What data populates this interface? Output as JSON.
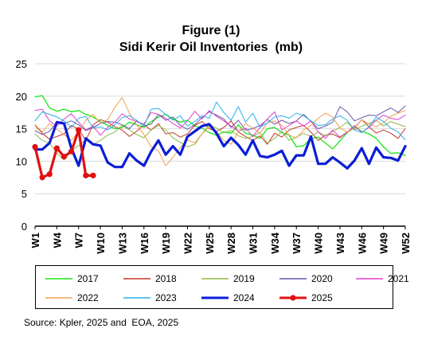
{
  "chart_data": {
    "type": "line",
    "title": "Figure (1)",
    "subtitle": "Sidi Kerir Oil Inventories  (mb)",
    "ylim": [
      0,
      25
    ],
    "yticks": [
      "0",
      "5",
      "10",
      "15",
      "20",
      "25"
    ],
    "xticks": [
      "W1",
      "W4",
      "W7",
      "W10",
      "W13",
      "W16",
      "W19",
      "W22",
      "W25",
      "W28",
      "W31",
      "W34",
      "W37",
      "W40",
      "W43",
      "W46",
      "W49",
      "W52"
    ],
    "grid": "horizontal",
    "legend_position": "bottom",
    "series": [
      {
        "name": "2017",
        "color": "#19e619",
        "width": 1.3,
        "values": [
          19.9,
          20.1,
          18.2,
          17.7,
          18.0,
          17.6,
          17.8,
          17.2,
          16.8,
          16.1,
          15.5,
          15.0,
          15.2,
          16.0,
          15.6,
          15.2,
          16.1,
          16.8,
          17.2,
          16.5,
          16.0,
          16.3,
          15.4,
          15.1,
          14.4,
          14.0,
          14.5,
          14.3,
          15.6,
          14.3,
          14.0,
          13.5,
          15.0,
          15.2,
          14.4,
          14.0,
          12.2,
          12.4,
          13.5,
          13.7,
          12.8,
          11.9,
          13.1,
          14.4,
          15.3,
          14.6,
          14.2,
          13.5,
          12.2,
          11.2,
          11.3,
          10.9
        ]
      },
      {
        "name": "2018",
        "color": "#c0392b",
        "width": 1.0,
        "values": [
          15.5,
          14.3,
          13.4,
          13.8,
          14.2,
          15.5,
          14.9,
          13.2,
          15.6,
          16.4,
          16.0,
          15.3,
          14.8,
          13.8,
          14.6,
          15.6,
          14.8,
          15.8,
          14.2,
          14.4,
          13.7,
          14.2,
          15.5,
          16.1,
          15.0,
          14.6,
          15.2,
          16.2,
          14.5,
          13.8,
          13.2,
          13.9,
          12.6,
          14.3,
          13.7,
          14.8,
          15.2,
          15.5,
          14.5,
          13.2,
          14.0,
          14.2,
          13.6,
          14.5,
          15.1,
          16.4,
          15.3,
          14.3,
          14.8,
          14.3,
          13.5,
          15.0
        ]
      },
      {
        "name": "2019",
        "color": "#8fb848",
        "width": 1.0,
        "values": [
          14.2,
          13.2,
          12.8,
          11.2,
          10.2,
          11.6,
          12.4,
          13.3,
          12.6,
          13.2,
          14.0,
          14.5,
          15.5,
          14.8,
          14.1,
          13.6,
          14.8,
          15.5,
          14.8,
          13.6,
          12.9,
          12.2,
          12.6,
          14.2,
          15.6,
          15.1,
          14.4,
          14.7,
          13.9,
          13.5,
          13.8,
          14.4,
          12.8,
          13.5,
          14.6,
          13.2,
          13.7,
          14.3,
          13.8,
          14.5,
          13.9,
          14.6,
          15.2,
          16.0,
          14.8,
          15.4,
          15.8,
          16.3,
          15.4,
          16.1,
          15.7,
          15.3
        ]
      },
      {
        "name": "2020",
        "color": "#6a55a8",
        "width": 1.0,
        "values": [
          14.7,
          14.1,
          14.6,
          16.0,
          15.8,
          16.2,
          15.6,
          14.7,
          15.2,
          15.8,
          16.1,
          16.0,
          15.6,
          15.0,
          16.2,
          15.4,
          15.7,
          17.2,
          16.3,
          16.8,
          15.5,
          14.9,
          15.6,
          16.7,
          17.6,
          17.1,
          16.5,
          15.2,
          16.3,
          14.8,
          15.0,
          15.5,
          16.4,
          15.7,
          16.3,
          15.8,
          16.2,
          17.2,
          16.1,
          15.0,
          15.4,
          16.0,
          18.4,
          17.6,
          16.2,
          16.7,
          17.1,
          17.0,
          17.6,
          18.2,
          17.5,
          18.5
        ]
      },
      {
        "name": "2021",
        "color": "#e040c8",
        "width": 1.0,
        "values": [
          17.8,
          18.0,
          16.2,
          15.4,
          16.5,
          17.3,
          16.0,
          14.8,
          15.4,
          14.0,
          15.2,
          16.0,
          17.3,
          16.5,
          16.1,
          15.7,
          17.5,
          17.2,
          16.6,
          15.8,
          15.1,
          16.2,
          17.7,
          16.5,
          17.8,
          16.9,
          16.2,
          15.4,
          14.6,
          15.1,
          13.8,
          15.2,
          16.5,
          17.6,
          14.8,
          15.5,
          16.2,
          15.4,
          16.2,
          14.5,
          13.5,
          14.8,
          13.7,
          14.5,
          15.5,
          14.4,
          15.2,
          16.3,
          17.1,
          16.6,
          16.4,
          17.1
        ]
      },
      {
        "name": "2022",
        "color": "#f0a050",
        "width": 1.0,
        "values": [
          15.6,
          14.5,
          15.8,
          14.9,
          14.1,
          13.2,
          14.5,
          16.3,
          17.2,
          15.8,
          16.4,
          18.3,
          19.8,
          17.4,
          15.6,
          14.1,
          12.2,
          11.6,
          9.3,
          10.6,
          12.1,
          13.3,
          12.8,
          14.2,
          15.3,
          14.5,
          13.2,
          12.6,
          14.5,
          15.8,
          15.1,
          14.3,
          15.9,
          16.2,
          15.5,
          14.0,
          13.6,
          14.8,
          15.5,
          16.6,
          17.4,
          16.8,
          15.1,
          14.5,
          15.2,
          16.4,
          15.7,
          15.3,
          15.9,
          16.9,
          17.4,
          17.8
        ]
      },
      {
        "name": "2023",
        "color": "#2bb0e8",
        "width": 1.0,
        "values": [
          16.2,
          17.6,
          17.2,
          16.8,
          16.2,
          15.2,
          16.6,
          16.9,
          15.1,
          15.3,
          14.8,
          15.6,
          16.7,
          17.0,
          16.3,
          15.4,
          18.0,
          18.1,
          17.2,
          16.3,
          17.0,
          15.4,
          16.1,
          17.0,
          16.6,
          19.1,
          17.5,
          16.3,
          18.4,
          16.0,
          17.4,
          15.2,
          15.9,
          16.8,
          17.0,
          16.6,
          17.4,
          17.0,
          16.2,
          15.5,
          15.6,
          16.5,
          17.0,
          16.3,
          14.8,
          14.4,
          15.3,
          16.8,
          16.1,
          15.1,
          14.5,
          13.3
        ]
      },
      {
        "name": "2024",
        "color": "#0a1ed6",
        "width": 3.2,
        "values": [
          11.8,
          11.8,
          12.8,
          16.0,
          15.8,
          12.0,
          9.3,
          13.5,
          12.6,
          12.4,
          9.8,
          9.1,
          9.1,
          11.2,
          10.1,
          9.3,
          11.5,
          13.2,
          11.0,
          12.3,
          11.0,
          13.8,
          14.6,
          15.4,
          15.7,
          14.3,
          12.3,
          13.6,
          12.5,
          11.0,
          13.2,
          10.8,
          10.6,
          11.0,
          11.6,
          9.3,
          10.9,
          10.9,
          13.8,
          9.6,
          9.6,
          10.6,
          9.8,
          8.9,
          10.1,
          12.0,
          9.6,
          12.1,
          10.6,
          10.5,
          10.1,
          12.3
        ]
      },
      {
        "name": "2025",
        "color": "#e01010",
        "width": 3.2,
        "marker": true,
        "values": [
          12.2,
          7.5,
          8.0,
          12.0,
          10.7,
          11.5,
          14.8,
          7.8,
          7.8
        ]
      }
    ]
  },
  "source": "Source: Kpler, 2025 and  EOA, 2025"
}
